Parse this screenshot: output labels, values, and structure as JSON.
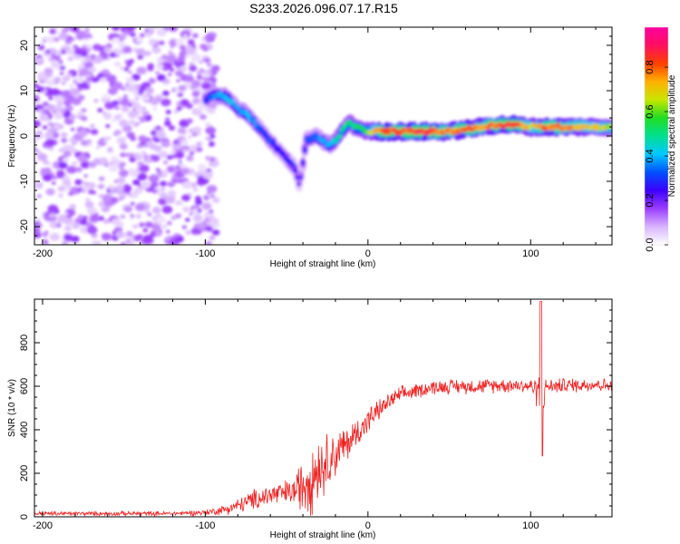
{
  "figure": {
    "title": "S233.2026.096.07.17.R15"
  },
  "colormap": [
    "#ffffff",
    "#d8b4ff",
    "#9b3dff",
    "#3b00ff",
    "#0050ff",
    "#00c8ff",
    "#00e090",
    "#22dd22",
    "#c8e600",
    "#ffb000",
    "#ff4000",
    "#ff1060",
    "#ff00a0"
  ],
  "chart_data": [
    {
      "type": "heatmap",
      "title": "",
      "xlabel": "Height of straight line (km)",
      "ylabel": "Frequency (Hz)",
      "xlim": [
        -205,
        150
      ],
      "ylim": [
        -24,
        24
      ],
      "xticks": [
        -200,
        -100,
        0,
        100
      ],
      "yticks": [
        -20,
        -10,
        0,
        10,
        20
      ],
      "colorbar": {
        "label": "Normalized spectral amplitude",
        "range": [
          0,
          0.98
        ],
        "ticks": [
          0.0,
          0.2,
          0.4,
          0.6,
          0.8
        ]
      },
      "ridge": {
        "x": [
          -100,
          -95,
          -90,
          -85,
          -80,
          -75,
          -70,
          -65,
          -60,
          -55,
          -50,
          -45,
          -42,
          -38,
          -33,
          -28,
          -24,
          -20,
          -16,
          -12,
          -8,
          -4,
          0,
          10,
          20,
          30,
          40,
          50,
          60,
          70,
          80,
          90,
          100,
          110,
          120,
          130,
          140,
          150
        ],
        "y": [
          8,
          9,
          9,
          8,
          6,
          5,
          3,
          1,
          -1,
          -3,
          -5,
          -7,
          -11,
          -1,
          0,
          -1,
          -2,
          -1,
          1,
          3,
          2,
          1.5,
          1,
          1,
          1,
          1,
          1,
          1,
          1.5,
          2,
          2.5,
          2.5,
          2,
          2,
          2,
          2,
          2,
          2
        ],
        "amplitude": [
          0.3,
          0.4,
          0.45,
          0.45,
          0.4,
          0.45,
          0.4,
          0.35,
          0.35,
          0.3,
          0.3,
          0.3,
          0.2,
          0.35,
          0.4,
          0.4,
          0.45,
          0.5,
          0.55,
          0.6,
          0.55,
          0.6,
          0.65,
          0.95,
          0.9,
          0.95,
          0.9,
          0.85,
          0.9,
          0.85,
          0.9,
          0.95,
          0.75,
          0.9,
          0.85,
          0.8,
          0.75,
          0.7
        ]
      },
      "noise_region": {
        "x_range": [
          -205,
          -93
        ],
        "y_range": [
          -24,
          24
        ],
        "amplitude_range": [
          0.03,
          0.18
        ]
      }
    },
    {
      "type": "line",
      "title": "",
      "xlabel": "Height of straight line (km)",
      "ylabel": "SNR (10 * v/v)",
      "xlim": [
        -205,
        150
      ],
      "ylim": [
        0,
        1000
      ],
      "xticks": [
        -200,
        -100,
        0,
        100
      ],
      "yticks": [
        0,
        200,
        400,
        600,
        800
      ],
      "series": [
        {
          "name": "SNR",
          "color": "#ee2222",
          "envelope": {
            "x": [
              -205,
              -120,
              -100,
              -90,
              -80,
              -70,
              -60,
              -50,
              -45,
              -40,
              -35,
              -30,
              -25,
              -20,
              -15,
              -10,
              -5,
              0,
              5,
              10,
              15,
              20,
              30,
              40,
              50,
              60,
              70,
              80,
              90,
              100,
              103,
              105,
              106,
              107,
              108,
              110,
              115,
              120,
              130,
              140,
              150
            ],
            "mean": [
              15,
              15,
              20,
              30,
              50,
              80,
              100,
              110,
              120,
              150,
              200,
              230,
              260,
              290,
              320,
              360,
              400,
              440,
              480,
              510,
              540,
              560,
              580,
              595,
              600,
              600,
              600,
              605,
              605,
              600,
              590,
              560,
              620,
              520,
              560,
              600,
              600,
              605,
              605,
              610,
              600
            ],
            "spread": [
              12,
              12,
              15,
              25,
              40,
              55,
              65,
              70,
              80,
              160,
              220,
              180,
              150,
              130,
              110,
              90,
              80,
              70,
              60,
              50,
              45,
              45,
              40,
              40,
              40,
              40,
              40,
              40,
              40,
              40,
              60,
              150,
              340,
              300,
              80,
              40,
              40,
              40,
              40,
              40,
              35
            ]
          }
        }
      ]
    }
  ]
}
